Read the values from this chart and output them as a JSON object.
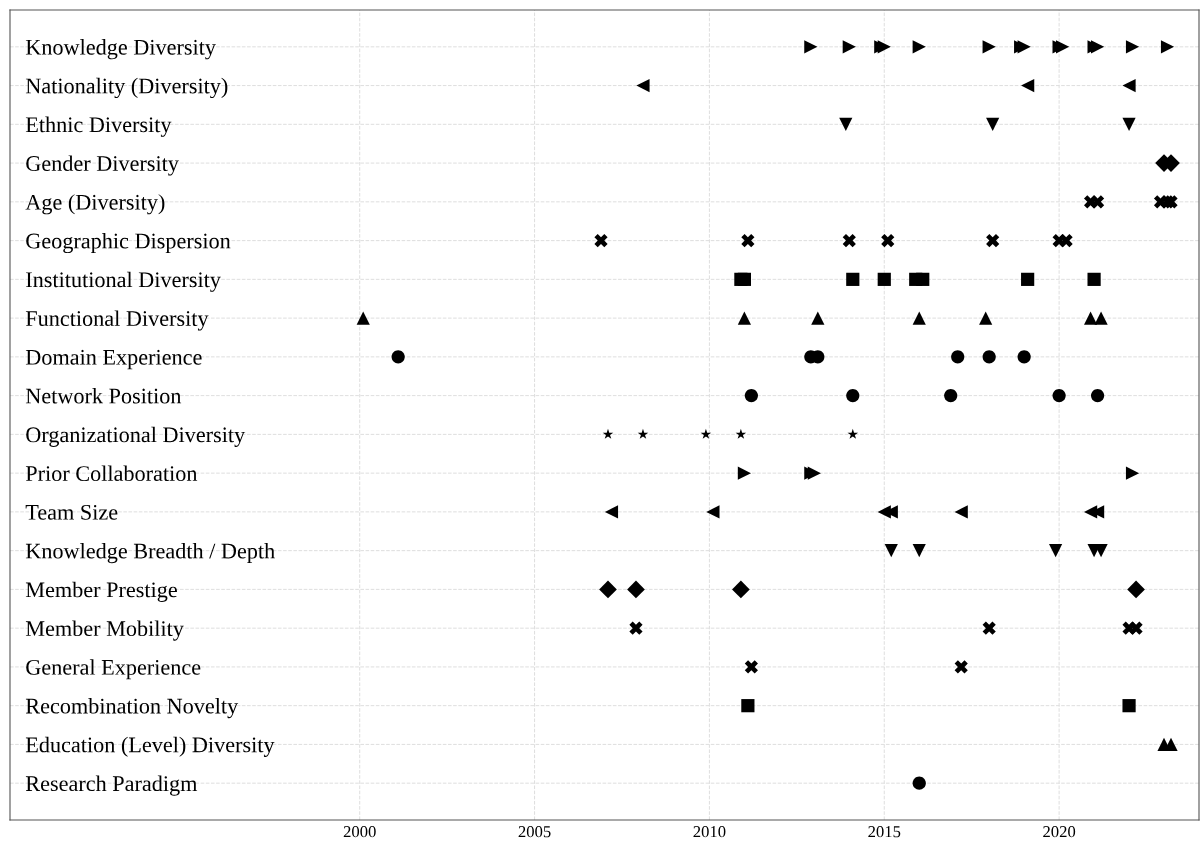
{
  "chart_data": {
    "type": "scatter",
    "orientation": "horizontal",
    "categories": [
      "Knowledge Diversity",
      "Nationality (Diversity)",
      "Ethnic Diversity",
      "Gender Diversity",
      "Age (Diversity)",
      "Geographic Dispersion",
      "Institutional Diversity",
      "Functional Diversity",
      "Domain Experience",
      "Network Position",
      "Organizational Diversity",
      "Prior Collaboration",
      "Team Size",
      "Knowledge Breadth / Depth",
      "Member Prestige",
      "Member Mobility",
      "General Experience",
      "Recombination Novelty",
      "Education (Level) Diversity",
      "Research Paradigm"
    ],
    "xlim": [
      1990,
      2024
    ],
    "xticks": [
      2000,
      2005,
      2010,
      2015,
      2020
    ],
    "grid": true,
    "series": [
      {
        "color": "#000000",
        "marker": "triangle-right",
        "x": [
          "Knowledge Diversity",
          "Knowledge Diversity",
          "Knowledge Diversity",
          "Knowledge Diversity",
          "Knowledge Diversity",
          "Knowledge Diversity",
          "Knowledge Diversity",
          "Knowledge Diversity",
          "Knowledge Diversity",
          "Knowledge Diversity",
          "Knowledge Diversity",
          "Knowledge Diversity",
          "Knowledge Diversity",
          "Knowledge Diversity"
        ],
        "values": [
          2012.9,
          2014.0,
          2014.9,
          2015.0,
          2016.0,
          2018.0,
          2018.9,
          2019.0,
          2020.0,
          2020.1,
          2021.0,
          2021.1,
          2022.1,
          2023.1
        ]
      },
      {
        "color": "#000000",
        "marker": "triangle-left",
        "x": [
          "Nationality (Diversity)",
          "Nationality (Diversity)",
          "Nationality (Diversity)"
        ],
        "values": [
          2008.1,
          2019.1,
          2022.0
        ]
      },
      {
        "color": "#000000",
        "marker": "triangle-down",
        "x": [
          "Ethnic Diversity",
          "Ethnic Diversity",
          "Ethnic Diversity"
        ],
        "values": [
          2013.9,
          2018.1,
          2022.0
        ]
      },
      {
        "color": "#000000",
        "marker": "diamond",
        "x": [
          "Gender Diversity",
          "Gender Diversity"
        ],
        "values": [
          2023.0,
          2023.2
        ]
      },
      {
        "color": "#000000",
        "marker": "cross",
        "x": [
          "Age (Diversity)",
          "Age (Diversity)",
          "Age (Diversity)",
          "Age (Diversity)",
          "Age (Diversity)"
        ],
        "values": [
          2020.9,
          2021.1,
          2022.9,
          2023.1,
          2023.2
        ]
      },
      {
        "color": "#000000",
        "marker": "cross",
        "x": [
          "Geographic Dispersion",
          "Geographic Dispersion",
          "Geographic Dispersion",
          "Geographic Dispersion",
          "Geographic Dispersion",
          "Geographic Dispersion",
          "Geographic Dispersion"
        ],
        "values": [
          2006.9,
          2011.1,
          2014.0,
          2015.1,
          2018.1,
          2020.0,
          2020.2
        ]
      },
      {
        "color": "#000000",
        "marker": "square",
        "x": [
          "Institutional Diversity",
          "Institutional Diversity",
          "Institutional Diversity",
          "Institutional Diversity",
          "Institutional Diversity",
          "Institutional Diversity",
          "Institutional Diversity",
          "Institutional Diversity"
        ],
        "values": [
          2010.9,
          2011.0,
          2014.1,
          2015.0,
          2015.9,
          2016.1,
          2019.1,
          2021.0
        ]
      },
      {
        "color": "#000000",
        "marker": "triangle",
        "x": [
          "Functional Diversity",
          "Functional Diversity",
          "Functional Diversity",
          "Functional Diversity",
          "Functional Diversity",
          "Functional Diversity",
          "Functional Diversity"
        ],
        "values": [
          2000.1,
          2011.0,
          2013.1,
          2016.0,
          2017.9,
          2020.9,
          2021.2
        ]
      },
      {
        "color": "#000000",
        "marker": "circle",
        "x": [
          "Domain Experience",
          "Domain Experience",
          "Domain Experience",
          "Domain Experience",
          "Domain Experience",
          "Domain Experience"
        ],
        "values": [
          2001.1,
          2012.9,
          2013.1,
          2017.1,
          2018.0,
          2019.0
        ]
      },
      {
        "color": "#000000",
        "marker": "circle",
        "x": [
          "Network Position",
          "Network Position",
          "Network Position",
          "Network Position",
          "Network Position"
        ],
        "values": [
          2011.2,
          2014.1,
          2016.9,
          2020.0,
          2021.1
        ]
      },
      {
        "color": "#000000",
        "marker": "star",
        "x": [
          "Organizational Diversity",
          "Organizational Diversity",
          "Organizational Diversity",
          "Organizational Diversity",
          "Organizational Diversity"
        ],
        "values": [
          2007.1,
          2008.1,
          2009.9,
          2010.9,
          2014.1
        ]
      },
      {
        "color": "#000000",
        "marker": "triangle-right",
        "x": [
          "Prior Collaboration",
          "Prior Collaboration",
          "Prior Collaboration",
          "Prior Collaboration"
        ],
        "values": [
          2011.0,
          2012.9,
          2013.0,
          2022.1
        ]
      },
      {
        "color": "#000000",
        "marker": "triangle-left",
        "x": [
          "Team Size",
          "Team Size",
          "Team Size",
          "Team Size",
          "Team Size",
          "Team Size",
          "Team Size"
        ],
        "values": [
          2007.2,
          2010.1,
          2015.0,
          2015.2,
          2017.2,
          2020.9,
          2021.1
        ]
      },
      {
        "color": "#000000",
        "marker": "triangle-down",
        "x": [
          "Knowledge Breadth / Depth",
          "Knowledge Breadth / Depth",
          "Knowledge Breadth / Depth",
          "Knowledge Breadth / Depth",
          "Knowledge Breadth / Depth"
        ],
        "values": [
          2015.2,
          2016.0,
          2019.9,
          2021.0,
          2021.2
        ]
      },
      {
        "color": "#000000",
        "marker": "diamond",
        "x": [
          "Member Prestige",
          "Member Prestige",
          "Member Prestige",
          "Member Prestige"
        ],
        "values": [
          2007.1,
          2007.9,
          2010.9,
          2022.2
        ]
      },
      {
        "color": "#000000",
        "marker": "cross",
        "x": [
          "Member Mobility",
          "Member Mobility",
          "Member Mobility",
          "Member Mobility"
        ],
        "values": [
          2007.9,
          2018.0,
          2022.0,
          2022.2
        ]
      },
      {
        "color": "#000000",
        "marker": "cross",
        "x": [
          "General Experience",
          "General Experience"
        ],
        "values": [
          2011.2,
          2017.2
        ]
      },
      {
        "color": "#000000",
        "marker": "square",
        "x": [
          "Recombination Novelty",
          "Recombination Novelty"
        ],
        "values": [
          2011.1,
          2022.0
        ]
      },
      {
        "color": "#000000",
        "marker": "triangle",
        "x": [
          "Education (Level) Diversity",
          "Education (Level) Diversity"
        ],
        "values": [
          2023.0,
          2023.2
        ]
      },
      {
        "color": "#000000",
        "marker": "circle",
        "x": [
          "Research Paradigm"
        ],
        "values": [
          2016.0
        ]
      }
    ]
  }
}
